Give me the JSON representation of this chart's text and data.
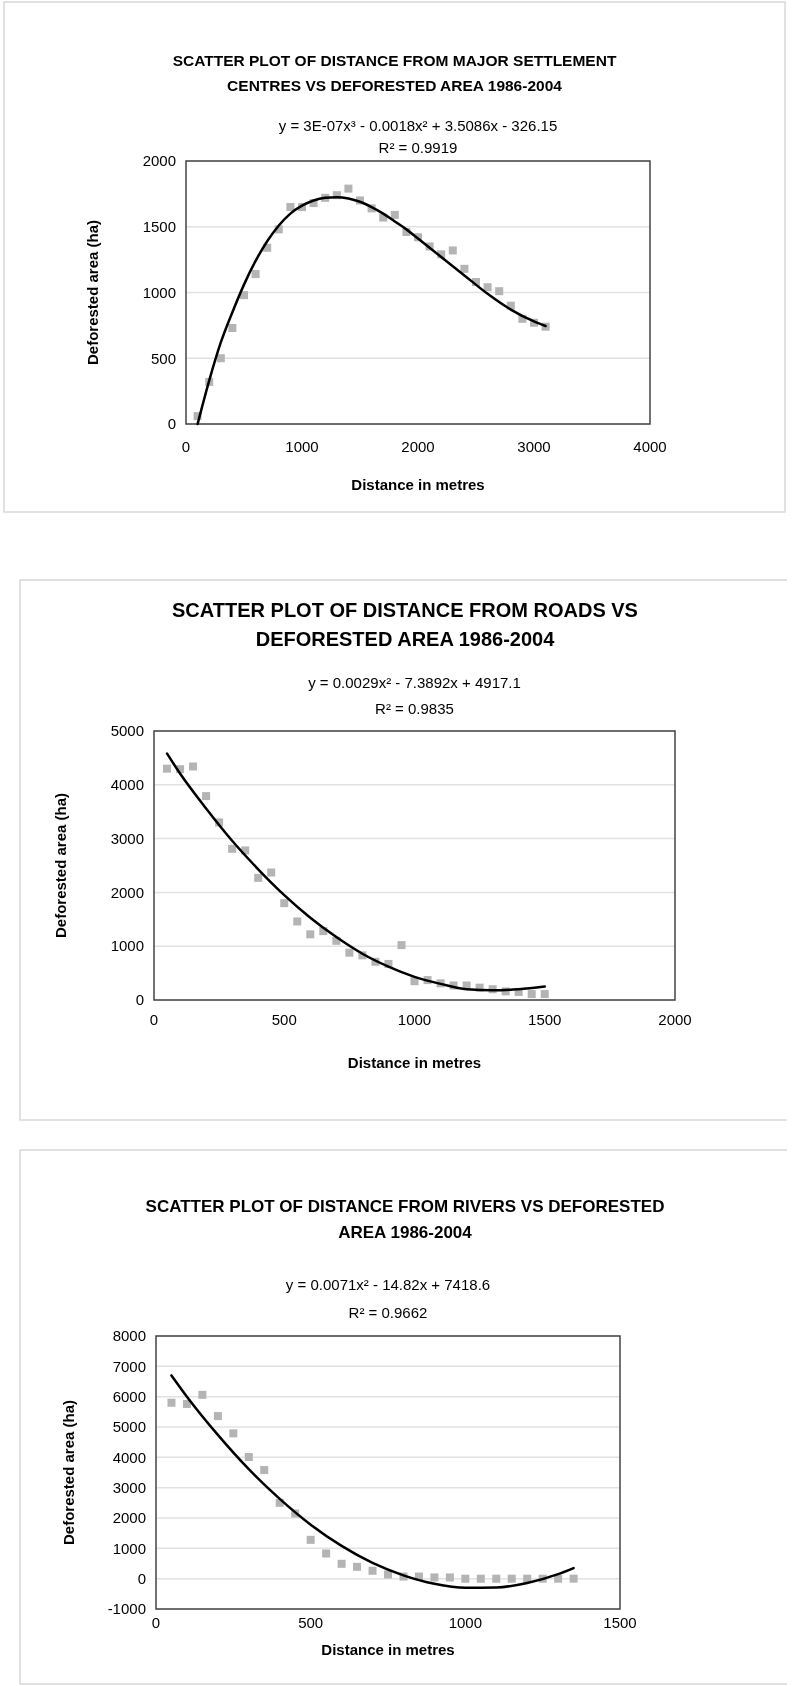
{
  "chart_data": [
    {
      "type": "scatter",
      "title": "SCATTER PLOT OF DISTANCE FROM MAJOR SETTLEMENT CENTRES VS DEFORESTED AREA 1986-2004",
      "xlabel": "Distance in metres",
      "ylabel": "Deforested area (ha)",
      "annotations": [
        "y = 3E-07x³ - 0.0018x² + 3.5086x - 326.15",
        "R² = 0.9919"
      ],
      "xlim": [
        0,
        4000
      ],
      "xticks": [
        0,
        1000,
        2000,
        3000,
        4000
      ],
      "ylim": [
        0,
        2000
      ],
      "yticks": [
        0,
        500,
        1000,
        1500,
        2000
      ],
      "grid": "y",
      "marker": "square",
      "series": [
        {
          "color": "#b4b4b4",
          "x": [
            100,
            200,
            300,
            400,
            500,
            600,
            700,
            800,
            900,
            1000,
            1100,
            1200,
            1300,
            1400,
            1500,
            1600,
            1700,
            1800,
            1900,
            2000,
            2100,
            2200,
            2300,
            2400,
            2500,
            2600,
            2700,
            2800,
            2900,
            3000,
            3100
          ],
          "values": [
            60,
            320,
            500,
            730,
            980,
            1140,
            1340,
            1480,
            1650,
            1650,
            1680,
            1720,
            1740,
            1790,
            1700,
            1640,
            1570,
            1590,
            1460,
            1420,
            1350,
            1290,
            1320,
            1180,
            1080,
            1040,
            1010,
            900,
            800,
            770,
            740
          ]
        },
        {
          "type": "line",
          "color": "#000000",
          "marker": "none",
          "x": [
            100,
            200,
            300,
            400,
            500,
            600,
            700,
            800,
            900,
            1000,
            1100,
            1200,
            1300,
            1400,
            1500,
            1600,
            1700,
            1800,
            1900,
            2000,
            2200,
            2400,
            2600,
            2800,
            3000,
            3100
          ],
          "values": [
            0,
            330,
            620,
            850,
            1060,
            1240,
            1390,
            1510,
            1600,
            1660,
            1700,
            1720,
            1725,
            1715,
            1690,
            1650,
            1600,
            1540,
            1480,
            1410,
            1270,
            1130,
            990,
            870,
            780,
            745
          ]
        }
      ]
    },
    {
      "type": "scatter",
      "title": "SCATTER PLOT OF DISTANCE FROM ROADS VS DEFORESTED AREA 1986-2004",
      "xlabel": "Distance in metres",
      "ylabel": "Deforested area (ha)",
      "annotations": [
        "y = 0.0029x² - 7.3892x + 4917.1",
        "R² = 0.9835"
      ],
      "xlim": [
        0,
        2000
      ],
      "xticks": [
        0,
        500,
        1000,
        1500,
        2000
      ],
      "ylim": [
        0,
        5000
      ],
      "yticks": [
        0,
        1000,
        2000,
        3000,
        4000,
        5000
      ],
      "grid": "y",
      "marker": "square",
      "series": [
        {
          "color": "#b4b4b4",
          "x": [
            50,
            100,
            150,
            200,
            250,
            300,
            350,
            400,
            450,
            500,
            550,
            600,
            650,
            700,
            750,
            800,
            850,
            900,
            950,
            1000,
            1050,
            1100,
            1150,
            1200,
            1250,
            1300,
            1350,
            1400,
            1450,
            1500
          ],
          "values": [
            4300,
            4290,
            4340,
            3790,
            3300,
            2810,
            2780,
            2270,
            2370,
            1800,
            1460,
            1220,
            1280,
            1100,
            880,
            830,
            710,
            670,
            1020,
            350,
            370,
            310,
            270,
            270,
            230,
            200,
            160,
            150,
            110,
            110
          ]
        },
        {
          "type": "line",
          "color": "#000000",
          "marker": "none",
          "x": [
            50,
            100,
            200,
            300,
            400,
            500,
            600,
            700,
            800,
            900,
            1000,
            1100,
            1200,
            1300,
            1400,
            1500
          ],
          "values": [
            4580,
            4210,
            3560,
            2960,
            2430,
            1950,
            1530,
            1170,
            860,
            620,
            430,
            300,
            200,
            180,
            200,
            250
          ]
        }
      ]
    },
    {
      "type": "scatter",
      "title": "SCATTER PLOT OF DISTANCE FROM RIVERS VS DEFORESTED AREA 1986-2004",
      "xlabel": "Distance in metres",
      "ylabel": "Deforested area (ha)",
      "annotations": [
        "y = 0.0071x² - 14.82x + 7418.6",
        "R² = 0.9662"
      ],
      "xlim": [
        0,
        1500
      ],
      "xticks": [
        0,
        500,
        1000,
        1500
      ],
      "ylim": [
        -1000,
        8000
      ],
      "yticks": [
        -1000,
        0,
        1000,
        2000,
        3000,
        4000,
        5000,
        6000,
        7000,
        8000
      ],
      "grid": "y",
      "marker": "square",
      "series": [
        {
          "color": "#b4b4b4",
          "x": [
            50,
            100,
            150,
            200,
            250,
            300,
            350,
            400,
            450,
            500,
            550,
            600,
            650,
            700,
            750,
            800,
            850,
            900,
            950,
            1000,
            1050,
            1100,
            1150,
            1200,
            1250,
            1300,
            1350
          ],
          "values": [
            5800,
            5760,
            6060,
            5360,
            4790,
            4010,
            3580,
            2500,
            2150,
            1280,
            830,
            490,
            390,
            260,
            140,
            70,
            70,
            40,
            40,
            0,
            0,
            0,
            0,
            0,
            0,
            0,
            0
          ]
        },
        {
          "type": "line",
          "color": "#000000",
          "marker": "none",
          "x": [
            50,
            100,
            200,
            300,
            400,
            500,
            600,
            700,
            800,
            900,
            1000,
            1100,
            1200,
            1300,
            1350
          ],
          "values": [
            6700,
            6000,
            4740,
            3610,
            2630,
            1780,
            1080,
            520,
            110,
            -170,
            -300,
            -290,
            -140,
            150,
            350
          ]
        }
      ]
    }
  ]
}
